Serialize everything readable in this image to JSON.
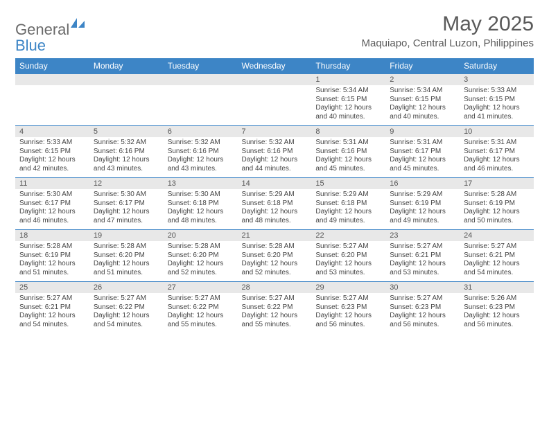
{
  "brand": {
    "part1": "General",
    "part2": "Blue"
  },
  "title": "May 2025",
  "location": "Maquiapo, Central Luzon, Philippines",
  "colors": {
    "header_bg": "#3d85c6",
    "header_text": "#ffffff",
    "daynum_bg": "#e8e8e8",
    "text": "#444444",
    "rule": "#3d85c6"
  },
  "weekdays": [
    "Sunday",
    "Monday",
    "Tuesday",
    "Wednesday",
    "Thursday",
    "Friday",
    "Saturday"
  ],
  "weeks": [
    [
      null,
      null,
      null,
      null,
      {
        "n": "1",
        "sr": "5:34 AM",
        "ss": "6:15 PM",
        "dl": "12 hours and 40 minutes."
      },
      {
        "n": "2",
        "sr": "5:34 AM",
        "ss": "6:15 PM",
        "dl": "12 hours and 40 minutes."
      },
      {
        "n": "3",
        "sr": "5:33 AM",
        "ss": "6:15 PM",
        "dl": "12 hours and 41 minutes."
      }
    ],
    [
      {
        "n": "4",
        "sr": "5:33 AM",
        "ss": "6:15 PM",
        "dl": "12 hours and 42 minutes."
      },
      {
        "n": "5",
        "sr": "5:32 AM",
        "ss": "6:16 PM",
        "dl": "12 hours and 43 minutes."
      },
      {
        "n": "6",
        "sr": "5:32 AM",
        "ss": "6:16 PM",
        "dl": "12 hours and 43 minutes."
      },
      {
        "n": "7",
        "sr": "5:32 AM",
        "ss": "6:16 PM",
        "dl": "12 hours and 44 minutes."
      },
      {
        "n": "8",
        "sr": "5:31 AM",
        "ss": "6:16 PM",
        "dl": "12 hours and 45 minutes."
      },
      {
        "n": "9",
        "sr": "5:31 AM",
        "ss": "6:17 PM",
        "dl": "12 hours and 45 minutes."
      },
      {
        "n": "10",
        "sr": "5:31 AM",
        "ss": "6:17 PM",
        "dl": "12 hours and 46 minutes."
      }
    ],
    [
      {
        "n": "11",
        "sr": "5:30 AM",
        "ss": "6:17 PM",
        "dl": "12 hours and 46 minutes."
      },
      {
        "n": "12",
        "sr": "5:30 AM",
        "ss": "6:17 PM",
        "dl": "12 hours and 47 minutes."
      },
      {
        "n": "13",
        "sr": "5:30 AM",
        "ss": "6:18 PM",
        "dl": "12 hours and 48 minutes."
      },
      {
        "n": "14",
        "sr": "5:29 AM",
        "ss": "6:18 PM",
        "dl": "12 hours and 48 minutes."
      },
      {
        "n": "15",
        "sr": "5:29 AM",
        "ss": "6:18 PM",
        "dl": "12 hours and 49 minutes."
      },
      {
        "n": "16",
        "sr": "5:29 AM",
        "ss": "6:19 PM",
        "dl": "12 hours and 49 minutes."
      },
      {
        "n": "17",
        "sr": "5:28 AM",
        "ss": "6:19 PM",
        "dl": "12 hours and 50 minutes."
      }
    ],
    [
      {
        "n": "18",
        "sr": "5:28 AM",
        "ss": "6:19 PM",
        "dl": "12 hours and 51 minutes."
      },
      {
        "n": "19",
        "sr": "5:28 AM",
        "ss": "6:20 PM",
        "dl": "12 hours and 51 minutes."
      },
      {
        "n": "20",
        "sr": "5:28 AM",
        "ss": "6:20 PM",
        "dl": "12 hours and 52 minutes."
      },
      {
        "n": "21",
        "sr": "5:28 AM",
        "ss": "6:20 PM",
        "dl": "12 hours and 52 minutes."
      },
      {
        "n": "22",
        "sr": "5:27 AM",
        "ss": "6:20 PM",
        "dl": "12 hours and 53 minutes."
      },
      {
        "n": "23",
        "sr": "5:27 AM",
        "ss": "6:21 PM",
        "dl": "12 hours and 53 minutes."
      },
      {
        "n": "24",
        "sr": "5:27 AM",
        "ss": "6:21 PM",
        "dl": "12 hours and 54 minutes."
      }
    ],
    [
      {
        "n": "25",
        "sr": "5:27 AM",
        "ss": "6:21 PM",
        "dl": "12 hours and 54 minutes."
      },
      {
        "n": "26",
        "sr": "5:27 AM",
        "ss": "6:22 PM",
        "dl": "12 hours and 54 minutes."
      },
      {
        "n": "27",
        "sr": "5:27 AM",
        "ss": "6:22 PM",
        "dl": "12 hours and 55 minutes."
      },
      {
        "n": "28",
        "sr": "5:27 AM",
        "ss": "6:22 PM",
        "dl": "12 hours and 55 minutes."
      },
      {
        "n": "29",
        "sr": "5:27 AM",
        "ss": "6:23 PM",
        "dl": "12 hours and 56 minutes."
      },
      {
        "n": "30",
        "sr": "5:27 AM",
        "ss": "6:23 PM",
        "dl": "12 hours and 56 minutes."
      },
      {
        "n": "31",
        "sr": "5:26 AM",
        "ss": "6:23 PM",
        "dl": "12 hours and 56 minutes."
      }
    ]
  ],
  "labels": {
    "sunrise": "Sunrise: ",
    "sunset": "Sunset: ",
    "daylight": "Daylight: "
  }
}
